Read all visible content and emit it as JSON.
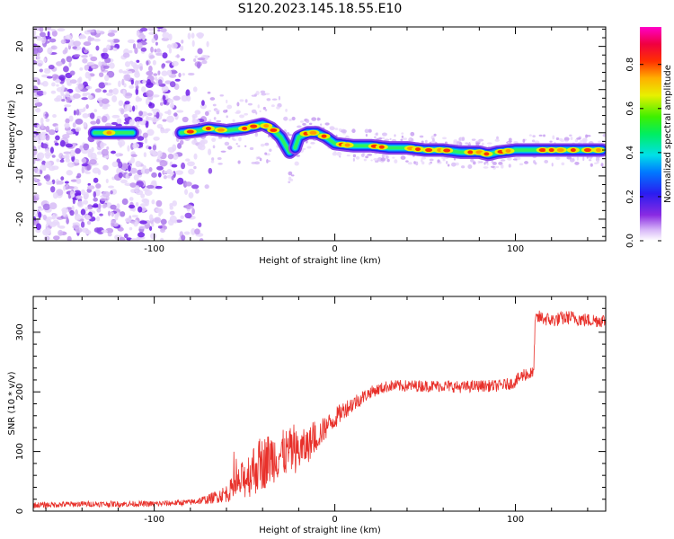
{
  "figure_title": "S120.2023.145.18.55.E10",
  "colors": {
    "snr_line": "#e8302a",
    "axis": "#000000"
  },
  "chart_data": [
    {
      "type": "heatmap",
      "title": "S120.2023.145.18.55.E10",
      "xlabel": "Height of straight line (km)",
      "ylabel": "Frequency (Hz)",
      "xlim": [
        -167,
        150
      ],
      "ylim": [
        -25,
        24.5
      ],
      "xticks": [
        -100,
        0,
        100
      ],
      "yticks": [
        -20,
        -10,
        0,
        10,
        20
      ],
      "colorbar": {
        "label": "Normalized spectral amplitude",
        "range": [
          0,
          0.97
        ],
        "ticks": [
          0.0,
          0.2,
          0.4,
          0.6,
          0.8
        ],
        "tick_labels": [
          "0.0",
          "0.2",
          "0.4",
          "0.6",
          "0.8"
        ],
        "colormap": "rainbow (white-violet-blue-cyan-green-yellow-red-magenta)"
      },
      "ridge": {
        "x": [
          -130,
          -120,
          -115,
          -85,
          -75,
          -70,
          -60,
          -50,
          -45,
          -40,
          -35,
          -30,
          -25,
          -22,
          -20,
          -15,
          -10,
          -5,
          0,
          10,
          20,
          30,
          40,
          50,
          60,
          70,
          75,
          80,
          85,
          90,
          100,
          110,
          120,
          130,
          140,
          148
        ],
        "y": [
          0,
          0,
          0,
          0,
          0.5,
          1,
          0.5,
          1,
          1.5,
          2,
          1,
          -1,
          -4.5,
          -3.5,
          -1,
          0,
          0,
          -1,
          -2.5,
          -3,
          -3,
          -3.5,
          -3.5,
          -4,
          -4,
          -4.5,
          -4.5,
          -4.5,
          -5,
          -4.5,
          -4,
          -4,
          -4,
          -4,
          -4,
          -4
        ]
      }
    },
    {
      "type": "line",
      "xlabel": "Height of straight line (km)",
      "ylabel": "SNR (10 * v/v)",
      "xlim": [
        -167,
        150
      ],
      "ylim": [
        0,
        360
      ],
      "xticks": [
        -100,
        0,
        100
      ],
      "yticks": [
        0,
        100,
        200,
        300
      ],
      "series": [
        {
          "name": "SNR",
          "x": [
            -167,
            -140,
            -120,
            -100,
            -80,
            -70,
            -60,
            -55,
            -50,
            -45,
            -40,
            -35,
            -30,
            -25,
            -20,
            -15,
            -10,
            -5,
            0,
            5,
            10,
            15,
            20,
            25,
            30,
            40,
            50,
            60,
            70,
            80,
            90,
            99,
            105,
            110,
            111,
            113,
            120,
            130,
            140,
            150
          ],
          "y": [
            10,
            12,
            12,
            12,
            15,
            20,
            30,
            40,
            55,
            70,
            80,
            90,
            95,
            100,
            100,
            110,
            125,
            140,
            155,
            170,
            180,
            190,
            200,
            205,
            210,
            210,
            210,
            210,
            208,
            210,
            210,
            215,
            230,
            230,
            320,
            325,
            320,
            325,
            320,
            320
          ],
          "noise": [
            5,
            5,
            5,
            5,
            5,
            8,
            15,
            25,
            35,
            45,
            45,
            45,
            40,
            40,
            35,
            30,
            25,
            20,
            18,
            15,
            15,
            12,
            10,
            10,
            10,
            10,
            10,
            10,
            10,
            10,
            10,
            10,
            12,
            12,
            12,
            12,
            12,
            12,
            12,
            12
          ]
        }
      ]
    }
  ]
}
